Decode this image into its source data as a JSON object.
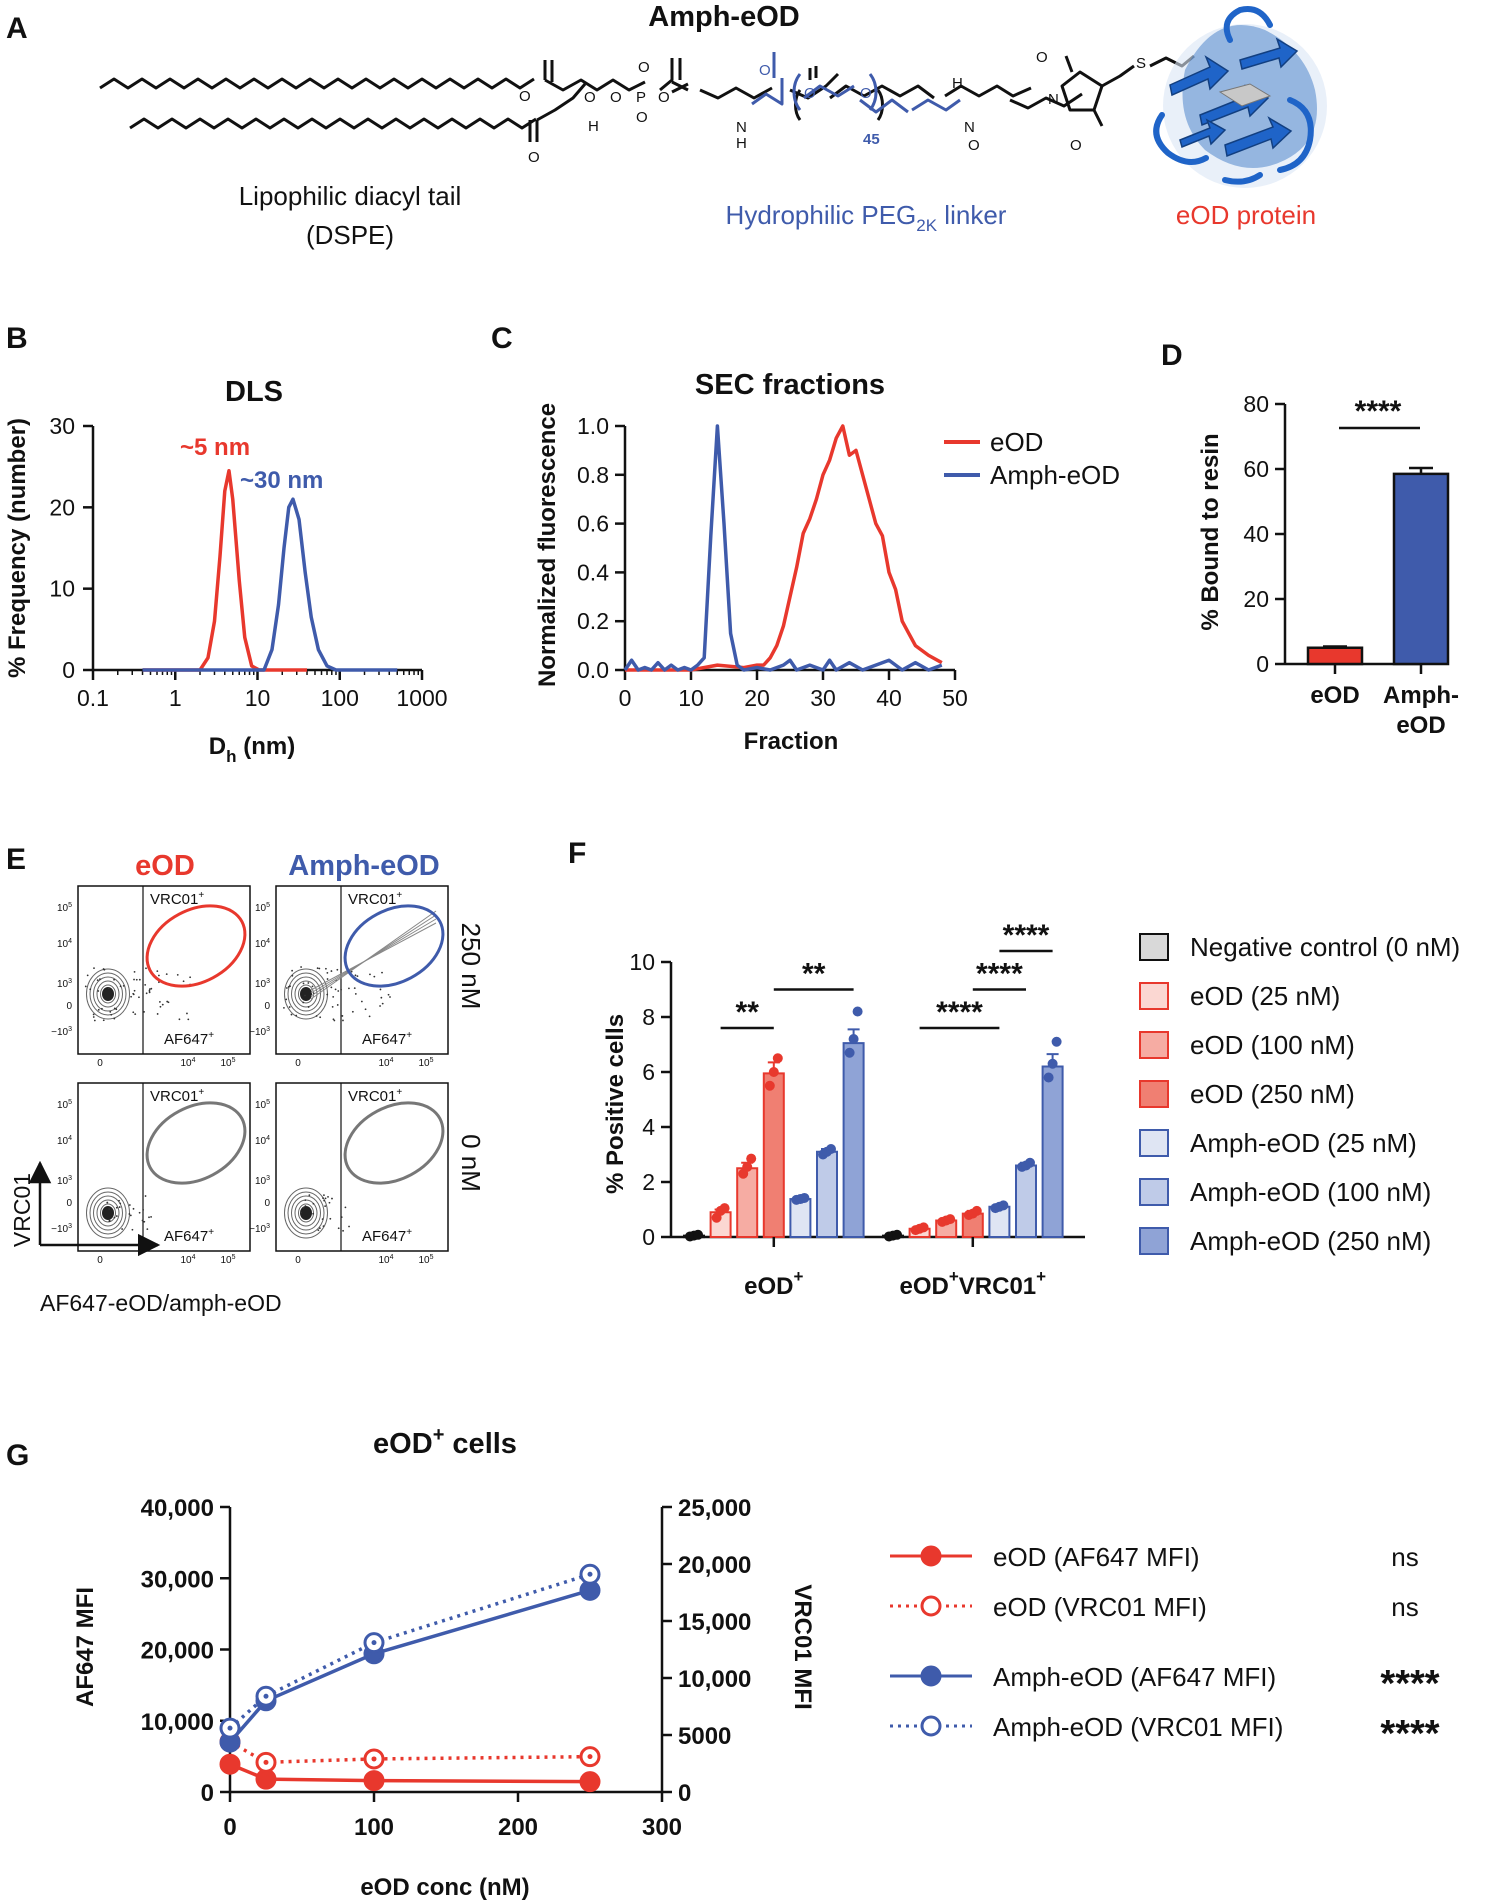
{
  "colors": {
    "red": "#e8382d",
    "blue": "#3f5bab",
    "gray": "#777777",
    "black": "#111111"
  },
  "panelA": {
    "label": "A",
    "title": "Amph-eOD",
    "tail_label_1": "Lipophilic diacyl tail",
    "tail_label_2": "(DSPE)",
    "linker_label": "Hydrophilic PEG",
    "linker_sub": "2K",
    "linker_suffix": " linker",
    "protein_label": "eOD protein",
    "repeat_n": "45"
  },
  "panelB": {
    "label": "B",
    "chart_data": {
      "type": "line",
      "title": "DLS",
      "xlabel": "D",
      "xlabel_sub": "h",
      "xlabel_unit": " (nm)",
      "ylabel": "% Frequency (number)",
      "xscale": "log",
      "xlim": [
        0.1,
        1000
      ],
      "ylim": [
        0,
        30
      ],
      "xticks": [
        0.1,
        1,
        10,
        100,
        1000
      ],
      "xtick_labels": [
        "0.1",
        "1",
        "10",
        "100",
        "1000"
      ],
      "yticks": [
        0,
        10,
        20,
        30
      ],
      "annotations": [
        {
          "text": "~5 nm",
          "color": "#e8382d"
        },
        {
          "text": "~30 nm",
          "color": "#3f5bab"
        }
      ],
      "series": [
        {
          "name": "eOD",
          "color": "#e8382d",
          "x": [
            0.4,
            2.0,
            2.5,
            3.0,
            3.5,
            4.0,
            4.5,
            5.0,
            6.0,
            7.0,
            8.5,
            10.5,
            40
          ],
          "y": [
            0,
            0,
            1.5,
            6,
            14,
            22,
            24.5,
            21,
            11,
            4,
            0.5,
            0,
            0
          ]
        },
        {
          "name": "Amph-eOD",
          "color": "#3f5bab",
          "x": [
            0.4,
            12,
            15,
            18,
            21,
            24,
            27,
            32,
            38,
            45,
            55,
            70,
            90,
            500
          ],
          "y": [
            0,
            0,
            2.5,
            8,
            15,
            20,
            21,
            18.5,
            12,
            6.5,
            2.5,
            0.5,
            0,
            0
          ]
        }
      ]
    }
  },
  "panelC": {
    "label": "C",
    "chart_data": {
      "type": "line",
      "title": "SEC fractions",
      "xlabel": "Fraction",
      "ylabel": "Normalized fluorescence",
      "xlim": [
        0,
        50
      ],
      "ylim": [
        0,
        1.0
      ],
      "xticks": [
        0,
        10,
        20,
        30,
        40,
        50
      ],
      "yticks": [
        "0.0",
        "0.2",
        "0.4",
        "0.6",
        "0.8",
        "1.0"
      ],
      "legend": "top-right",
      "series": [
        {
          "name": "eOD",
          "color": "#e8382d",
          "x": [
            0,
            10,
            14,
            18,
            20,
            21,
            22,
            23,
            24,
            25,
            26,
            27,
            28,
            29,
            30,
            31,
            32,
            33,
            34,
            35,
            36,
            37,
            38,
            39,
            40,
            41,
            42,
            43,
            44,
            46,
            48
          ],
          "y": [
            0.0,
            0.0,
            0.02,
            0.01,
            0.02,
            0.02,
            0.05,
            0.1,
            0.18,
            0.3,
            0.42,
            0.56,
            0.62,
            0.7,
            0.8,
            0.86,
            0.95,
            1.0,
            0.88,
            0.9,
            0.8,
            0.7,
            0.6,
            0.55,
            0.4,
            0.33,
            0.2,
            0.15,
            0.1,
            0.06,
            0.03
          ]
        },
        {
          "name": "Amph-eOD",
          "color": "#3f5bab",
          "x": [
            0,
            1,
            2,
            3,
            4,
            5,
            6,
            7,
            8,
            9,
            10,
            11,
            12,
            13,
            14,
            15,
            16,
            17,
            18,
            20,
            22,
            24,
            25,
            26,
            28,
            30,
            31,
            32,
            34,
            36,
            38,
            40,
            42,
            44,
            46,
            48
          ],
          "y": [
            0.0,
            0.04,
            0.0,
            0.01,
            0.0,
            0.03,
            0.0,
            0.02,
            0.0,
            0.01,
            0.0,
            0.02,
            0.05,
            0.55,
            1.0,
            0.6,
            0.15,
            0.02,
            0.0,
            0.01,
            0.0,
            0.02,
            0.04,
            0.0,
            0.02,
            0.0,
            0.04,
            0.0,
            0.03,
            0.0,
            0.02,
            0.04,
            0.0,
            0.03,
            0.0,
            0.02
          ]
        }
      ]
    }
  },
  "panelD": {
    "label": "D",
    "chart_data": {
      "type": "bar",
      "categories": [
        "eOD",
        "Amph-\neOD"
      ],
      "category_lines": [
        [
          "eOD"
        ],
        [
          "Amph-",
          "eOD"
        ]
      ],
      "values": [
        5,
        58.5
      ],
      "errors": [
        0.4,
        1.8
      ],
      "colors": [
        "#e8382d",
        "#3f5bab"
      ],
      "ylabel": "% Bound to resin",
      "ylim": [
        0,
        80
      ],
      "yticks": [
        0,
        20,
        40,
        60,
        80
      ],
      "significance": "****"
    }
  },
  "panelE": {
    "label": "E",
    "col_titles": [
      "eOD",
      "Amph-eOD"
    ],
    "row_labels": [
      "250 nM",
      "0 nM"
    ],
    "gate_top": "VRC01",
    "gate_bottom": "AF647",
    "gate_sup": "+",
    "y_axis_label": "VRC01",
    "x_axis_label": "AF647-eOD/amph-eOD",
    "y_tick_labels": [
      "10",
      "10",
      "10",
      "0",
      "−10"
    ],
    "y_tick_exps": [
      "5",
      "4",
      "3",
      "",
      "3"
    ],
    "x_tick_labels": [
      "0",
      "10",
      "10"
    ],
    "x_tick_exps": [
      "",
      "4",
      "5"
    ]
  },
  "panelF": {
    "label": "F",
    "chart_data": {
      "type": "bar",
      "ylabel": "% Positive cells",
      "ylim": [
        0,
        10
      ],
      "yticks": [
        0,
        2,
        4,
        6,
        8,
        10
      ],
      "groups": [
        "eOD",
        "eODVRC01"
      ],
      "group_labels": [
        [
          {
            "t": "eOD"
          },
          {
            "t": "+",
            "sup": true
          }
        ],
        [
          {
            "t": "eOD"
          },
          {
            "t": "+",
            "sup": true
          },
          {
            "t": "VRC01"
          },
          {
            "t": "+",
            "sup": true
          }
        ]
      ],
      "series": [
        {
          "name": "Negative control (0 nM)",
          "fill": "#d9d9d9",
          "edge": "#111111",
          "values": [
            0.05,
            0.05
          ],
          "errors": [
            0.02,
            0.02
          ]
        },
        {
          "name": "eOD (25 nM)",
          "fill": "#fbd7d2",
          "edge": "#e8382d",
          "values": [
            0.9,
            0.3
          ],
          "errors": [
            0.1,
            0.05
          ]
        },
        {
          "name": "eOD (100 nM)",
          "fill": "#f6aca3",
          "edge": "#e8382d",
          "values": [
            2.5,
            0.6
          ],
          "errors": [
            0.2,
            0.05
          ]
        },
        {
          "name": "eOD (250 nM)",
          "fill": "#f07f72",
          "edge": "#e8382d",
          "values": [
            5.95,
            0.85
          ],
          "errors": [
            0.4,
            0.1
          ]
        },
        {
          "name": "Amph-eOD (25 nM)",
          "fill": "#dfe5f3",
          "edge": "#3f5bab",
          "values": [
            1.38,
            1.1
          ],
          "errors": [
            0.05,
            0.05
          ]
        },
        {
          "name": "Amph-eOD (100 nM)",
          "fill": "#bfcbe8",
          "edge": "#3f5bab",
          "values": [
            3.1,
            2.6
          ],
          "errors": [
            0.1,
            0.1
          ]
        },
        {
          "name": "Amph-eOD (250 nM)",
          "fill": "#8fa3d6",
          "edge": "#3f5bab",
          "values": [
            7.05,
            6.2
          ],
          "errors": [
            0.5,
            0.45
          ]
        }
      ],
      "points": [
        [
          [
            0.02,
            0.05,
            0.08
          ],
          [
            0.7,
            0.95,
            1.05
          ],
          [
            2.3,
            2.55,
            2.85
          ],
          [
            5.5,
            6.0,
            6.5
          ],
          [
            1.35,
            1.38,
            1.42
          ],
          [
            3.0,
            3.1,
            3.2
          ],
          [
            6.7,
            7.2,
            8.2
          ]
        ],
        [
          [
            0.02,
            0.05,
            0.08
          ],
          [
            0.25,
            0.3,
            0.35
          ],
          [
            0.55,
            0.6,
            0.65
          ],
          [
            0.8,
            0.85,
            0.95
          ],
          [
            1.05,
            1.1,
            1.15
          ],
          [
            2.55,
            2.6,
            2.7
          ],
          [
            5.8,
            6.3,
            7.1
          ]
        ]
      ],
      "significance": [
        {
          "text": "**",
          "group": 0,
          "from": 1,
          "to": 3,
          "y": 7.6
        },
        {
          "text": "**",
          "group": 0,
          "from": 3,
          "to": 6,
          "y": 9.0
        },
        {
          "text": "****",
          "group": 1,
          "from": 1,
          "to": 4,
          "y": 7.6
        },
        {
          "text": "****",
          "group": 1,
          "from": 3,
          "to": 5,
          "y": 9.0
        },
        {
          "text": "****",
          "group": 1,
          "from": 4,
          "to": 6,
          "y": 10.4
        }
      ]
    }
  },
  "panelG": {
    "label": "G",
    "chart_data": {
      "type": "line",
      "title": "eOD",
      "title_sup": "+",
      "title_suffix": " cells",
      "xlabel": "eOD conc (nM)",
      "ylabel_left": "AF647 MFI",
      "ylabel_right": "VRC01 MFI",
      "xlim": [
        0,
        300
      ],
      "ylim_left": [
        0,
        40000
      ],
      "ylim_right": [
        0,
        25000
      ],
      "xticks": [
        0,
        100,
        200,
        300
      ],
      "yticks_left": [
        0,
        10000,
        20000,
        30000,
        40000
      ],
      "yticks_left_labels": [
        "0",
        "10,000",
        "20,000",
        "30,000",
        "40,000"
      ],
      "yticks_right": [
        0,
        5000,
        10000,
        15000,
        20000,
        25000
      ],
      "yticks_right_labels": [
        "0",
        "5000",
        "10,000",
        "15,000",
        "20,000",
        "25,000"
      ],
      "x": [
        0,
        25,
        100,
        250
      ],
      "series": [
        {
          "name": "eOD (AF647 MFI)",
          "axis": "left",
          "color": "#e8382d",
          "style": "solid",
          "marker": "filled",
          "values": [
            3900,
            1800,
            1600,
            1450
          ],
          "errors": [
            400,
            300,
            200,
            200
          ],
          "stat": "ns"
        },
        {
          "name": "eOD (VRC01 MFI)",
          "axis": "right",
          "color": "#e8382d",
          "style": "dotted",
          "marker": "open",
          "values": [
            4400,
            2600,
            2900,
            3100
          ],
          "errors": [
            300,
            200,
            200,
            200
          ],
          "stat": "ns"
        },
        {
          "name": "Amph-eOD (AF647 MFI)",
          "axis": "left",
          "color": "#3f5bab",
          "style": "solid",
          "marker": "filled",
          "values": [
            7000,
            12800,
            19400,
            28300
          ],
          "errors": [
            500,
            1200,
            800,
            600
          ],
          "stat": "****"
        },
        {
          "name": "Amph-eOD (VRC01 MFI)",
          "axis": "right",
          "color": "#3f5bab",
          "style": "dotted",
          "marker": "open",
          "values": [
            5600,
            8400,
            13100,
            19100
          ],
          "errors": [
            400,
            800,
            500,
            400
          ],
          "stat": "****"
        }
      ]
    }
  }
}
